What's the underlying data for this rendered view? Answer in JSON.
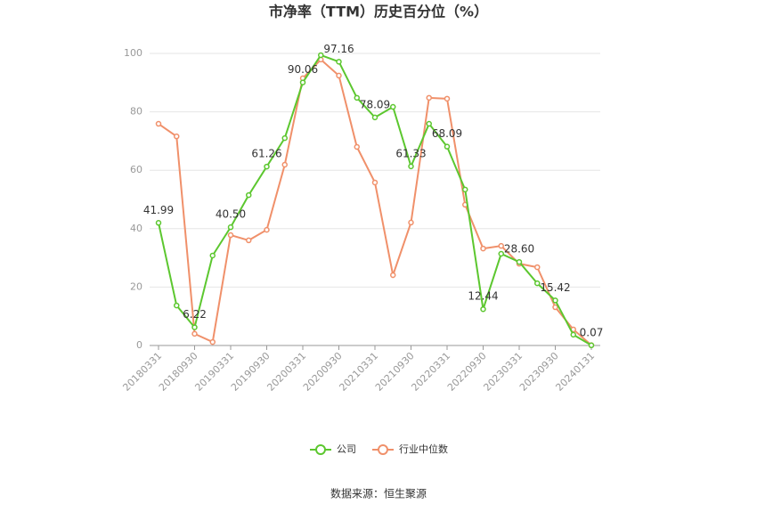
{
  "chart_data": {
    "type": "line",
    "title": "市净率（TTM）历史百分位（%）",
    "source": "数据来源：恒生聚源",
    "categories": [
      "20180331",
      null,
      "20180930",
      null,
      "20190331",
      null,
      "20190930",
      null,
      "20200331",
      null,
      "20200930",
      null,
      "20210331",
      null,
      "20210930",
      null,
      "20220331",
      null,
      "20220930",
      null,
      "20230331",
      null,
      "20230930",
      null,
      "20240131"
    ],
    "series": [
      {
        "name": "公司",
        "color": "#5cc72f",
        "values": [
          41.99,
          13.7,
          6.22,
          30.8,
          40.5,
          51.5,
          61.26,
          71.0,
          90.06,
          99.4,
          97.16,
          84.8,
          78.09,
          81.7,
          61.33,
          75.9,
          68.09,
          53.4,
          12.44,
          31.4,
          28.6,
          21.3,
          15.42,
          3.7,
          0.07
        ],
        "value_labels": [
          "41.99",
          null,
          "6.22",
          null,
          "40.50",
          null,
          "61.26",
          null,
          "90.06",
          null,
          "97.16",
          null,
          "78.09",
          null,
          "61.33",
          null,
          "68.09",
          null,
          "12.44",
          null,
          "28.60",
          null,
          "15.42",
          null,
          "0.07"
        ]
      },
      {
        "name": "行业中位数",
        "color": "#f0906a",
        "values": [
          75.9,
          71.6,
          4.0,
          1.2,
          37.8,
          36.0,
          39.6,
          61.9,
          91.5,
          97.9,
          92.4,
          68.0,
          55.8,
          24.1,
          42.1,
          84.8,
          84.5,
          48.2,
          33.2,
          34.1,
          28.0,
          26.8,
          13.1,
          5.5,
          0.1
        ]
      }
    ],
    "ylim": [
      0,
      100
    ],
    "yticks": [
      0,
      20,
      40,
      60,
      80,
      100
    ],
    "grid": true,
    "legend": "bottom"
  }
}
